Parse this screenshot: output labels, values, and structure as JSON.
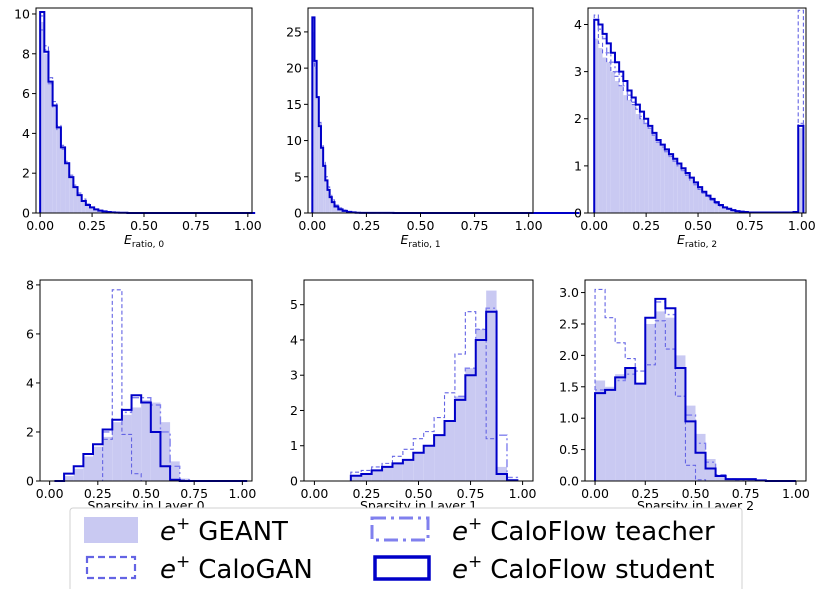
{
  "colors": {
    "geant_fill": "#c9c9f2",
    "calogan": "#6464e4",
    "teacher": "#8080ee",
    "student": "#0000c8"
  },
  "legend": {
    "geant": {
      "label": "GEANT",
      "prefix": "e",
      "sup": "+"
    },
    "calogan": {
      "label": "CaloGAN",
      "prefix": "e",
      "sup": "+"
    },
    "teacher": {
      "label": "CaloFlow teacher",
      "prefix": "e",
      "sup": "+"
    },
    "student": {
      "label": "CaloFlow student",
      "prefix": "e",
      "sup": "+"
    }
  },
  "chart_data": [
    {
      "type": "histogram",
      "xlabel": {
        "main": "E",
        "sub": "ratio, 0"
      },
      "xlim": [
        -0.02,
        1.02
      ],
      "ylim": [
        0,
        10.3
      ],
      "xticks": [
        "0.00",
        "0.25",
        "0.50",
        "0.75",
        "1.00"
      ],
      "yticks": [
        0,
        2,
        4,
        6,
        8,
        10
      ],
      "x": [
        0.01,
        0.03,
        0.05,
        0.07,
        0.09,
        0.11,
        0.13,
        0.15,
        0.17,
        0.19,
        0.21,
        0.23,
        0.25,
        0.27,
        0.29,
        0.31,
        0.33,
        0.35,
        0.37,
        0.39,
        0.41,
        0.43,
        0.45,
        0.5,
        0.6,
        0.7,
        0.8,
        0.9,
        0.99
      ],
      "series": [
        {
          "name": "GEANT",
          "values": [
            9.6,
            8.0,
            6.6,
            5.4,
            4.3,
            3.3,
            2.5,
            1.8,
            1.3,
            0.9,
            0.6,
            0.4,
            0.28,
            0.18,
            0.12,
            0.08,
            0.05,
            0.03,
            0.02,
            0.01,
            0.01,
            0,
            0,
            0,
            0,
            0,
            0,
            0,
            0
          ]
        },
        {
          "name": "CaloGAN",
          "values": [
            9.2,
            8.4,
            6.8,
            5.6,
            4.4,
            3.4,
            2.6,
            1.9,
            1.4,
            1.0,
            0.7,
            0.45,
            0.3,
            0.2,
            0.13,
            0.09,
            0.05,
            0.03,
            0.02,
            0.01,
            0.01,
            0,
            0,
            0,
            0,
            0,
            0,
            0,
            0
          ]
        },
        {
          "name": "CaloFlow teacher",
          "values": [
            9.9,
            8.2,
            6.5,
            5.3,
            4.2,
            3.2,
            2.5,
            1.8,
            1.3,
            0.9,
            0.6,
            0.4,
            0.27,
            0.18,
            0.12,
            0.08,
            0.05,
            0.03,
            0.02,
            0.01,
            0.01,
            0,
            0,
            0,
            0,
            0,
            0,
            0,
            0
          ]
        },
        {
          "name": "CaloFlow student",
          "values": [
            10.1,
            8.1,
            6.6,
            5.4,
            4.3,
            3.3,
            2.5,
            1.8,
            1.3,
            0.9,
            0.6,
            0.4,
            0.28,
            0.18,
            0.12,
            0.08,
            0.05,
            0.03,
            0.02,
            0.01,
            0.01,
            0,
            0,
            0,
            0,
            0,
            0,
            0,
            0
          ]
        }
      ]
    },
    {
      "type": "histogram",
      "xlabel": {
        "main": "E",
        "sub": "ratio, 1"
      },
      "xlim": [
        -0.02,
        1.02
      ],
      "ylim": [
        0,
        28.3
      ],
      "xticks": [
        "0.00",
        "0.25",
        "0.50",
        "0.75",
        "1.00"
      ],
      "yticks": [
        0,
        5,
        10,
        15,
        20,
        25
      ],
      "x": [
        0.005,
        0.015,
        0.025,
        0.035,
        0.045,
        0.055,
        0.065,
        0.075,
        0.085,
        0.095,
        0.11,
        0.13,
        0.15,
        0.17,
        0.19,
        0.21,
        0.23,
        0.25,
        0.5,
        0.99
      ],
      "series": [
        {
          "name": "GEANT",
          "values": [
            25.0,
            21.0,
            16.0,
            12.0,
            9.0,
            6.5,
            4.5,
            3.2,
            2.2,
            1.5,
            0.9,
            0.5,
            0.3,
            0.15,
            0.08,
            0.04,
            0.02,
            0.01,
            0,
            0
          ]
        },
        {
          "name": "CaloGAN",
          "values": [
            21.0,
            20.0,
            16.0,
            12.5,
            9.5,
            7.0,
            5.0,
            3.6,
            2.6,
            1.8,
            1.1,
            0.7,
            0.4,
            0.2,
            0.1,
            0.05,
            0.02,
            0.01,
            0,
            0
          ]
        },
        {
          "name": "CaloFlow teacher",
          "values": [
            26.0,
            21.0,
            16.0,
            12.0,
            9.0,
            6.5,
            4.5,
            3.2,
            2.2,
            1.5,
            0.9,
            0.5,
            0.3,
            0.15,
            0.08,
            0.04,
            0.02,
            0.01,
            0,
            0
          ]
        },
        {
          "name": "CaloFlow student",
          "values": [
            27.0,
            21.0,
            16.0,
            12.0,
            9.0,
            6.5,
            4.5,
            3.2,
            2.2,
            1.5,
            0.9,
            0.5,
            0.3,
            0.15,
            0.08,
            0.04,
            0.02,
            0.01,
            0,
            0
          ]
        }
      ]
    },
    {
      "type": "histogram",
      "xlabel": {
        "main": "E",
        "sub": "ratio, 2"
      },
      "xlim": [
        -0.03,
        1.02
      ],
      "ylim": [
        0,
        4.35
      ],
      "xticks": [
        "0.00",
        "0.25",
        "0.50",
        "0.75",
        "1.00"
      ],
      "yticks": [
        0,
        1,
        2,
        3,
        4
      ],
      "x": [
        0.01,
        0.03,
        0.05,
        0.07,
        0.09,
        0.11,
        0.13,
        0.15,
        0.17,
        0.19,
        0.21,
        0.23,
        0.25,
        0.27,
        0.29,
        0.31,
        0.33,
        0.35,
        0.37,
        0.39,
        0.41,
        0.43,
        0.45,
        0.47,
        0.49,
        0.51,
        0.53,
        0.55,
        0.57,
        0.59,
        0.61,
        0.63,
        0.65,
        0.67,
        0.69,
        0.71,
        0.73,
        0.75,
        0.77,
        0.79,
        0.81,
        0.83,
        0.85,
        0.87,
        0.89,
        0.91,
        0.93,
        0.95,
        0.97,
        0.995
      ],
      "series": [
        {
          "name": "GEANT",
          "values": [
            3.7,
            3.5,
            3.3,
            3.2,
            3.0,
            2.8,
            2.7,
            2.5,
            2.4,
            2.3,
            2.1,
            2.0,
            1.9,
            1.8,
            1.7,
            1.55,
            1.45,
            1.35,
            1.25,
            1.15,
            1.05,
            0.95,
            0.85,
            0.75,
            0.65,
            0.55,
            0.45,
            0.37,
            0.3,
            0.23,
            0.17,
            0.12,
            0.09,
            0.06,
            0.04,
            0.03,
            0.02,
            0.01,
            0.01,
            0.01,
            0.01,
            0.01,
            0.01,
            0.01,
            0.01,
            0.01,
            0.01,
            0.01,
            0.02,
            1.8
          ]
        },
        {
          "name": "CaloGAN",
          "values": [
            4.2,
            3.6,
            3.4,
            3.2,
            3.0,
            2.9,
            2.7,
            2.6,
            2.4,
            2.3,
            2.2,
            2.0,
            1.9,
            1.8,
            1.7,
            1.55,
            1.45,
            1.35,
            1.2,
            1.1,
            1.0,
            0.9,
            0.8,
            0.7,
            0.6,
            0.5,
            0.42,
            0.34,
            0.27,
            0.2,
            0.15,
            0.11,
            0.08,
            0.05,
            0.03,
            0.02,
            0.01,
            0.01,
            0.01,
            0.01,
            0.01,
            0.01,
            0.01,
            0.01,
            0.01,
            0.01,
            0.01,
            0.01,
            0.02,
            4.3
          ]
        },
        {
          "name": "CaloFlow teacher",
          "values": [
            4.0,
            3.9,
            3.7,
            3.4,
            3.2,
            3.0,
            2.9,
            2.7,
            2.5,
            2.35,
            2.2,
            2.05,
            1.9,
            1.8,
            1.65,
            1.5,
            1.4,
            1.3,
            1.2,
            1.1,
            1.0,
            0.9,
            0.8,
            0.7,
            0.6,
            0.5,
            0.42,
            0.34,
            0.27,
            0.2,
            0.15,
            0.11,
            0.08,
            0.05,
            0.03,
            0.02,
            0.01,
            0.01,
            0.01,
            0.01,
            0.01,
            0.01,
            0.01,
            0.01,
            0.01,
            0.01,
            0.01,
            0.01,
            0.02,
            1.9
          ]
        },
        {
          "name": "CaloFlow student",
          "values": [
            4.1,
            4.0,
            3.8,
            3.6,
            3.4,
            3.2,
            3.0,
            2.8,
            2.6,
            2.45,
            2.3,
            2.15,
            2.0,
            1.85,
            1.7,
            1.55,
            1.45,
            1.35,
            1.25,
            1.15,
            1.05,
            0.95,
            0.85,
            0.75,
            0.65,
            0.55,
            0.45,
            0.37,
            0.3,
            0.23,
            0.17,
            0.12,
            0.09,
            0.06,
            0.04,
            0.03,
            0.02,
            0.01,
            0.01,
            0.01,
            0.01,
            0.01,
            0.01,
            0.01,
            0.01,
            0.01,
            0.01,
            0.01,
            0.02,
            1.85
          ]
        }
      ]
    },
    {
      "type": "histogram",
      "xlabel": {
        "main": "Sparsity in Layer 0",
        "sub": ""
      },
      "xlim": [
        -0.05,
        1.05
      ],
      "ylim": [
        0,
        8.2
      ],
      "xticks": [
        "0.00",
        "0.25",
        "0.50",
        "0.75",
        "1.00"
      ],
      "yticks": [
        0,
        2,
        4,
        6,
        8
      ],
      "x": [
        0.05,
        0.1,
        0.15,
        0.2,
        0.25,
        0.3,
        0.35,
        0.4,
        0.45,
        0.5,
        0.55,
        0.6,
        0.65,
        0.7,
        0.75,
        0.8,
        0.85,
        0.9,
        0.95,
        1.0
      ],
      "series": [
        {
          "name": "GEANT",
          "values": [
            0,
            0.2,
            0.5,
            1.0,
            1.4,
            1.8,
            2.4,
            2.7,
            3.0,
            3.3,
            3.2,
            2.4,
            0.8,
            0.1,
            0,
            0,
            0,
            0,
            0,
            0
          ]
        },
        {
          "name": "CaloGAN",
          "values": [
            0,
            0,
            0,
            0,
            0,
            1.7,
            7.8,
            1.9,
            0.3,
            0,
            0,
            0,
            0,
            0,
            0,
            0,
            0,
            0,
            0,
            0
          ]
        },
        {
          "name": "CaloFlow teacher",
          "values": [
            0,
            0.3,
            0.6,
            1.1,
            1.5,
            2.0,
            2.5,
            2.8,
            3.4,
            3.4,
            3.1,
            2.0,
            0.6,
            0.05,
            0,
            0,
            0,
            0,
            0,
            0
          ]
        },
        {
          "name": "CaloFlow student",
          "values": [
            0,
            0.3,
            0.6,
            1.1,
            1.5,
            2.1,
            2.5,
            2.9,
            3.5,
            3.2,
            2.0,
            0.6,
            0.05,
            0,
            0,
            0,
            0,
            0,
            0,
            0
          ]
        }
      ]
    },
    {
      "type": "histogram",
      "xlabel": {
        "main": "Sparsity in Layer 1",
        "sub": ""
      },
      "xlim": [
        -0.05,
        1.05
      ],
      "ylim": [
        0,
        5.7
      ],
      "xticks": [
        "0.00",
        "0.25",
        "0.50",
        "0.75",
        "1.00"
      ],
      "yticks": [
        0,
        1,
        2,
        3,
        4,
        5
      ],
      "x": [
        0.2,
        0.25,
        0.3,
        0.35,
        0.4,
        0.45,
        0.5,
        0.55,
        0.6,
        0.65,
        0.7,
        0.75,
        0.8,
        0.85,
        0.9,
        0.95
      ],
      "series": [
        {
          "name": "GEANT",
          "values": [
            0.15,
            0.2,
            0.3,
            0.4,
            0.5,
            0.6,
            0.8,
            1.0,
            1.3,
            1.7,
            2.4,
            3.2,
            4.3,
            5.4,
            0.4,
            0.05
          ]
        },
        {
          "name": "CaloGAN",
          "values": [
            0.25,
            0.3,
            0.4,
            0.5,
            0.7,
            0.9,
            1.2,
            1.4,
            1.8,
            2.5,
            3.6,
            4.8,
            4.3,
            1.2,
            0.2,
            0.02
          ]
        },
        {
          "name": "CaloFlow teacher",
          "values": [
            0.15,
            0.2,
            0.3,
            0.4,
            0.5,
            0.6,
            0.8,
            1.0,
            1.3,
            1.7,
            2.4,
            3.2,
            4.3,
            4.9,
            1.3,
            0.1
          ]
        },
        {
          "name": "CaloFlow student",
          "values": [
            0.15,
            0.2,
            0.3,
            0.4,
            0.5,
            0.6,
            0.8,
            1.0,
            1.3,
            1.7,
            2.3,
            3.0,
            4.0,
            4.8,
            0.2,
            0.02
          ]
        }
      ]
    },
    {
      "type": "histogram",
      "xlabel": {
        "main": "Sparsity in Layer 2",
        "sub": ""
      },
      "xlim": [
        -0.05,
        1.05
      ],
      "ylim": [
        0,
        3.2
      ],
      "xticks": [
        "0.00",
        "0.25",
        "0.50",
        "0.75",
        "1.00"
      ],
      "yticks": [
        "0.0",
        "0.5",
        "1.0",
        "1.5",
        "2.0",
        "2.5",
        "3.0"
      ],
      "x": [
        0.025,
        0.075,
        0.125,
        0.175,
        0.225,
        0.275,
        0.325,
        0.375,
        0.425,
        0.475,
        0.525,
        0.575,
        0.625,
        0.675,
        0.725,
        0.775,
        0.825,
        0.875,
        0.925,
        0.975
      ],
      "series": [
        {
          "name": "GEANT",
          "values": [
            1.6,
            1.5,
            1.7,
            1.8,
            1.55,
            2.5,
            2.7,
            2.6,
            2.0,
            1.2,
            0.75,
            0.35,
            0.1,
            0.03,
            0.02,
            0.02,
            0.01,
            0,
            0,
            0
          ]
        },
        {
          "name": "CaloGAN",
          "values": [
            3.05,
            2.6,
            2.2,
            1.95,
            1.75,
            1.85,
            2.55,
            2.1,
            1.35,
            0.25,
            0.02,
            0,
            0,
            0,
            0,
            0,
            0,
            0,
            0,
            0
          ]
        },
        {
          "name": "CaloFlow teacher",
          "values": [
            1.45,
            1.45,
            1.6,
            1.7,
            1.55,
            2.6,
            2.85,
            2.65,
            1.8,
            1.05,
            0.6,
            0.3,
            0.1,
            0.03,
            0.02,
            0.02,
            0.01,
            0,
            0,
            0
          ]
        },
        {
          "name": "CaloFlow student",
          "values": [
            1.4,
            1.45,
            1.65,
            1.8,
            1.55,
            2.6,
            2.9,
            2.75,
            1.8,
            0.95,
            0.45,
            0.2,
            0.08,
            0.03,
            0.03,
            0.03,
            0.01,
            0,
            0,
            0
          ]
        }
      ]
    }
  ]
}
